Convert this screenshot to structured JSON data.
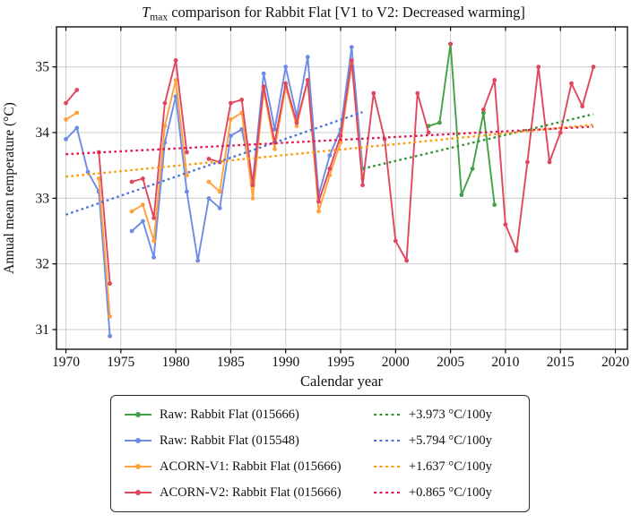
{
  "chart_data": {
    "type": "line",
    "title": {
      "var": "T",
      "sub": "max",
      "rest": " comparison for Rabbit Flat  [V1 to V2: Decreased warming]"
    },
    "xlabel": "Calendar year",
    "ylabel": "Annual mean temperature (°C)",
    "xlim": [
      1969.14,
      2021.1
    ],
    "ylim": [
      30.7,
      35.61
    ],
    "xticks": [
      1970,
      1975,
      1980,
      1985,
      1990,
      1995,
      2000,
      2005,
      2010,
      2015,
      2020
    ],
    "yticks": [
      31,
      32,
      33,
      34,
      35
    ],
    "grid": true,
    "grid_color": "#cbcbcb",
    "legend_position": "below",
    "series": [
      {
        "id": "raw-015666",
        "name": "Raw: Rabbit Flat (015666)",
        "color": "#44a048",
        "start_year": 2003,
        "values": [
          34.1,
          34.15,
          35.35,
          33.05,
          33.45,
          34.3,
          32.9
        ]
      },
      {
        "id": "raw-015548",
        "name": "Raw: Rabbit Flat (015548)",
        "color": "#6d8ce8",
        "start_year": 1970,
        "values": [
          33.9,
          34.07,
          33.4,
          33.1,
          30.9,
          null,
          32.5,
          32.65,
          32.1,
          33.85,
          34.55,
          33.1,
          32.05,
          33.0,
          32.85,
          33.95,
          34.05,
          33.25,
          34.9,
          34.05,
          35.0,
          34.25,
          35.15,
          33.05,
          33.65,
          34.05,
          35.3,
          33.45
        ]
      },
      {
        "id": "acorn-v1-015666",
        "name": "ACORN-V1: Rabbit Flat (015666)",
        "color": "#ffa23e",
        "start_year": 1970,
        "values": [
          34.2,
          34.3,
          null,
          33.3,
          31.2,
          null,
          32.8,
          32.9,
          32.35,
          34.1,
          34.8,
          33.35,
          null,
          33.25,
          33.1,
          34.2,
          34.3,
          33.0,
          34.65,
          33.75,
          34.7,
          34.1,
          34.8,
          32.8,
          33.35,
          33.85,
          35.05,
          33.3
        ]
      },
      {
        "id": "acorn-v2-015666",
        "name": "ACORN-V2: Rabbit Flat (015666)",
        "color": "#e0475c",
        "start_year": 1970,
        "values": [
          34.45,
          34.65,
          null,
          33.7,
          31.7,
          null,
          33.25,
          33.3,
          32.7,
          34.45,
          35.1,
          33.7,
          null,
          33.6,
          33.55,
          34.45,
          34.5,
          33.2,
          34.7,
          33.85,
          34.75,
          34.15,
          34.8,
          32.95,
          33.45,
          33.95,
          35.1,
          33.2,
          34.6,
          33.9,
          32.35,
          32.05,
          34.6,
          34.0,
          null,
          35.35,
          null,
          null,
          34.35,
          34.8,
          32.6,
          32.2,
          33.55,
          35.0,
          33.55,
          34.0,
          34.75,
          34.4,
          35.0
        ]
      }
    ],
    "trends": [
      {
        "id": "trend-raw-015666",
        "label": "+3.973 °C/100y",
        "color": "#2f8f2f",
        "x": [
          1997,
          2018
        ],
        "y": [
          33.45,
          34.28
        ]
      },
      {
        "id": "trend-raw-015548",
        "label": "+5.794 °C/100y",
        "color": "#4a6fe0",
        "x": [
          1970,
          1997
        ],
        "y": [
          32.75,
          34.31
        ]
      },
      {
        "id": "trend-acorn-v1",
        "label": "+1.637 °C/100y",
        "color": "#ff9800",
        "x": [
          1970,
          2018
        ],
        "y": [
          33.33,
          34.12
        ]
      },
      {
        "id": "trend-acorn-v2",
        "label": "+0.865 °C/100y",
        "color": "#e8134e",
        "x": [
          1970,
          2018
        ],
        "y": [
          33.67,
          34.09
        ]
      }
    ]
  }
}
